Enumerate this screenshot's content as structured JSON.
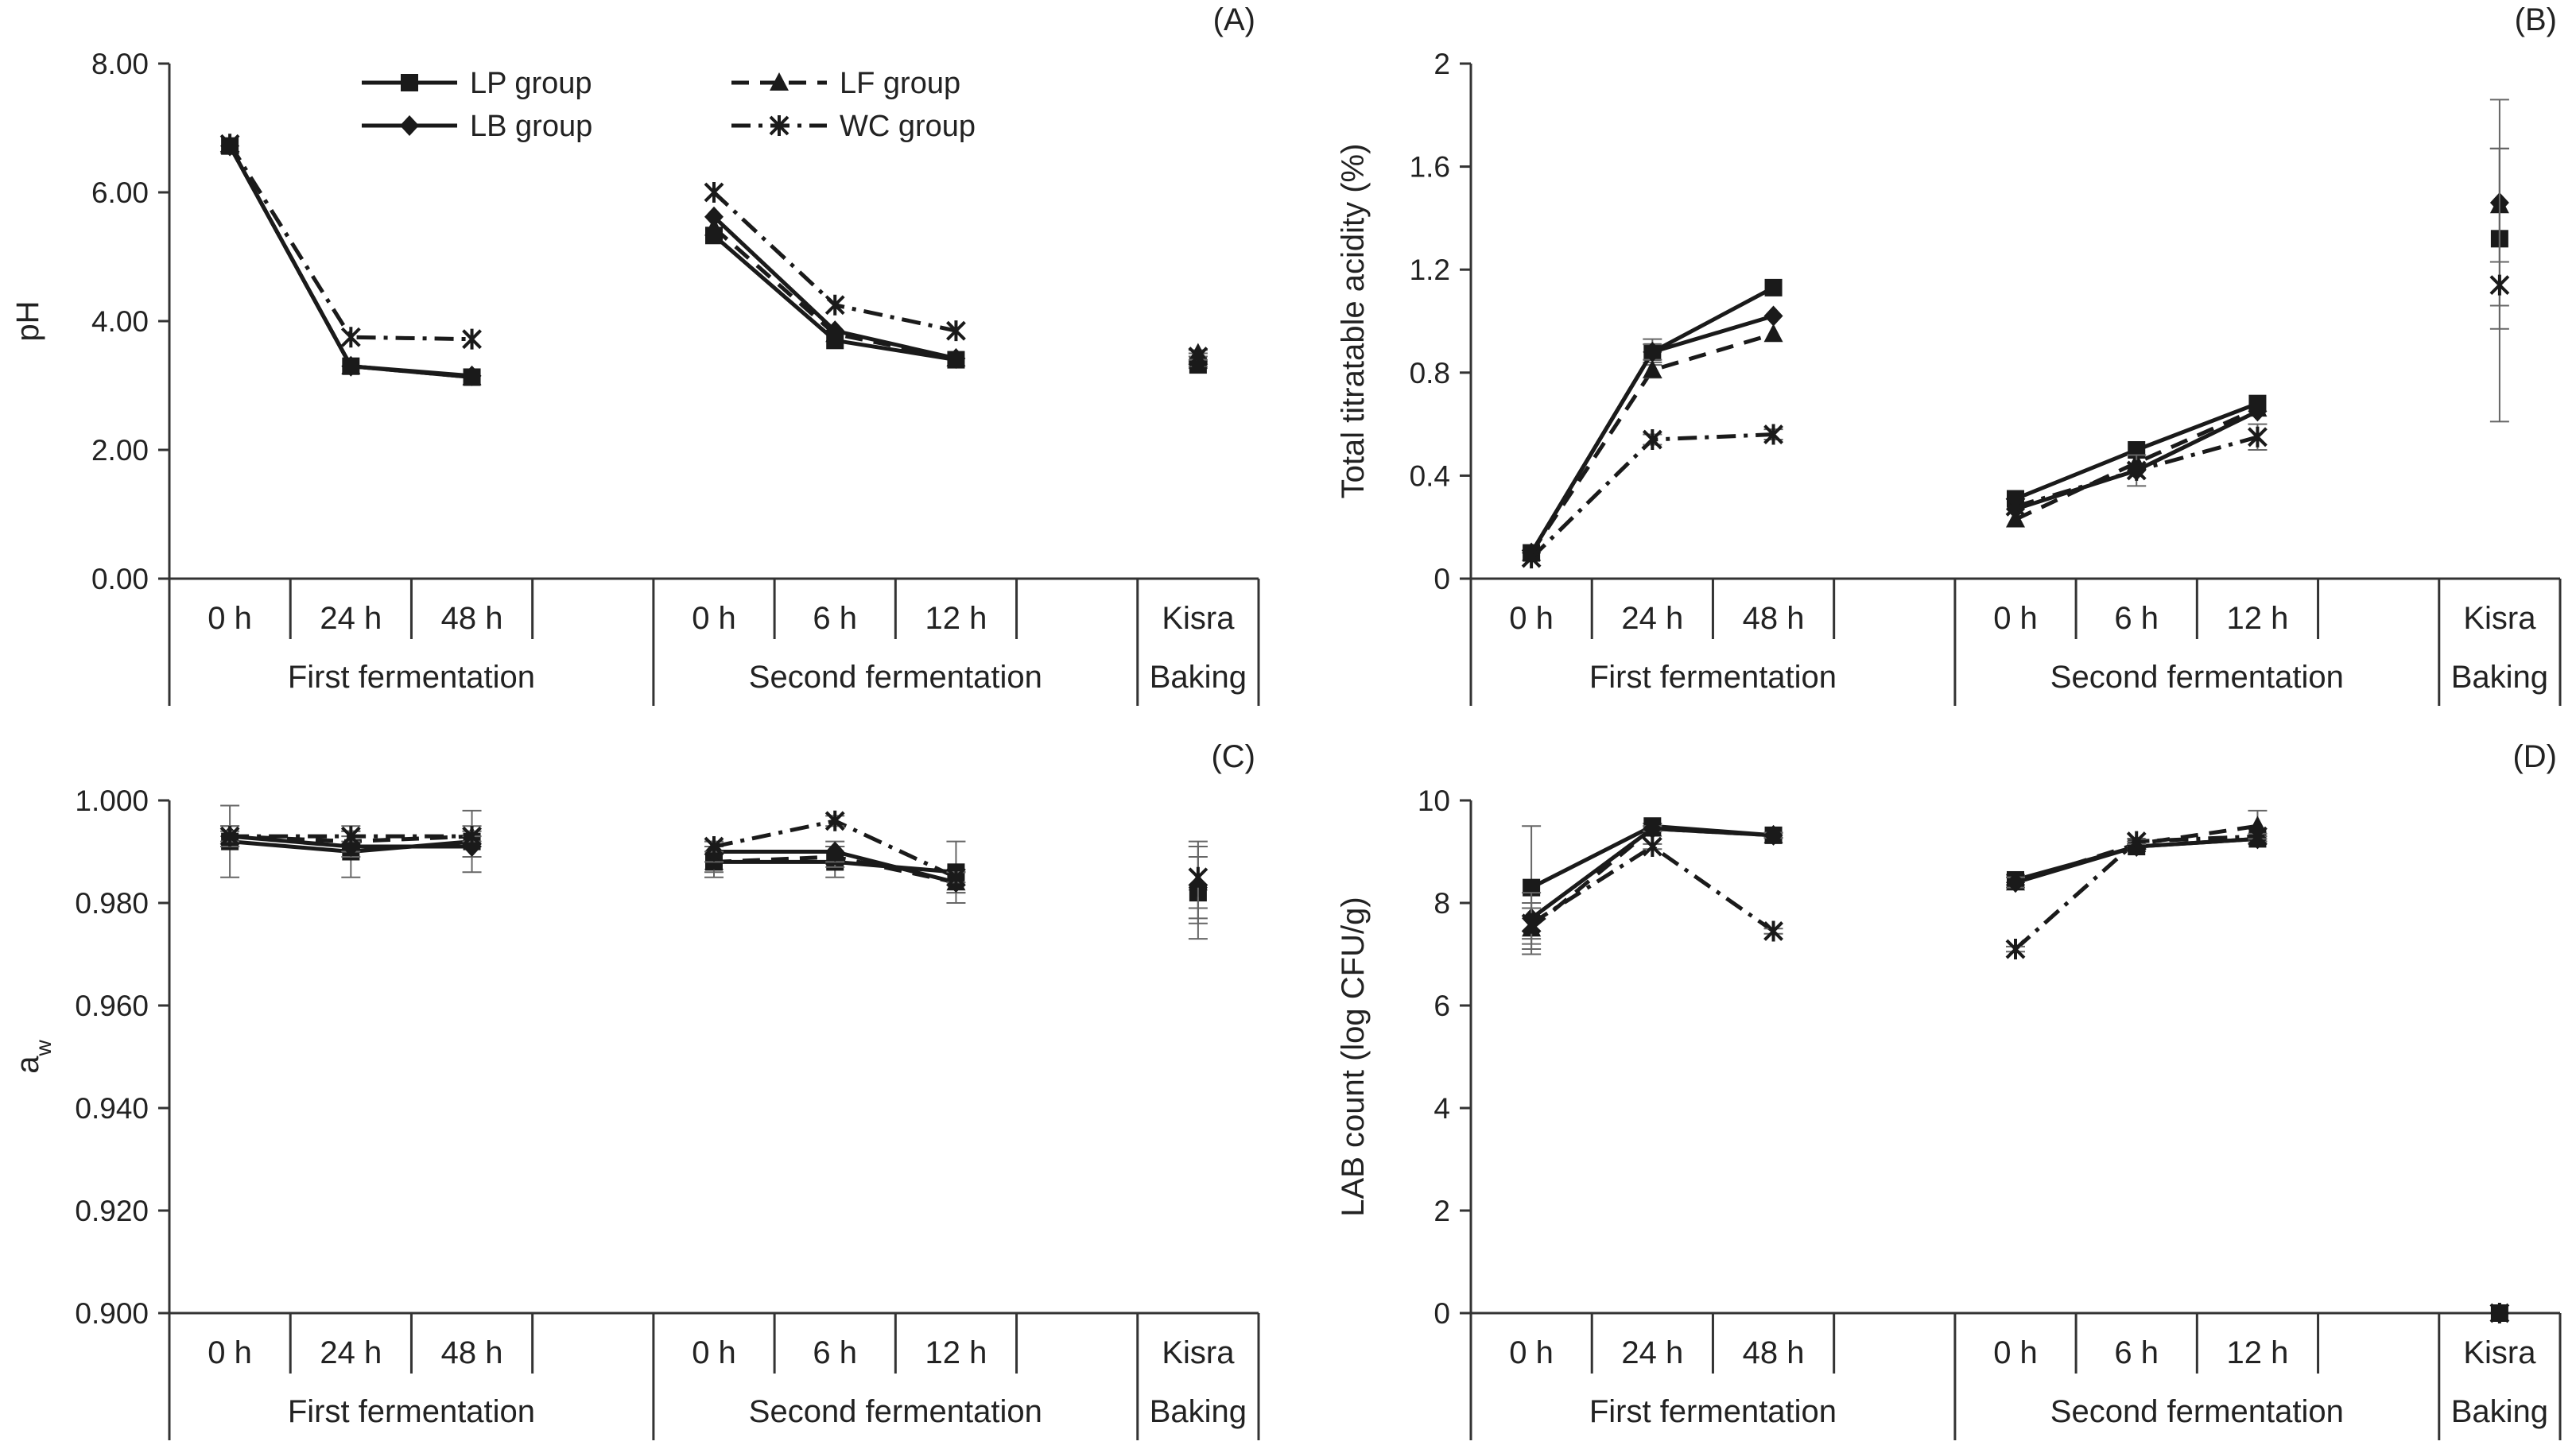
{
  "legend": {
    "items": [
      {
        "key": "LP",
        "label": "LP group",
        "dash": "",
        "marker": "square"
      },
      {
        "key": "LF",
        "label": "LF group",
        "dash": "22 14",
        "marker": "triangle"
      },
      {
        "key": "LB",
        "label": "LB group",
        "dash": "",
        "marker": "diamond"
      },
      {
        "key": "WC",
        "label": "WC group",
        "dash": "",
        "marker": "star"
      }
    ]
  },
  "x_axis": {
    "tick_labels": [
      "0 h",
      "24 h",
      "48 h",
      "0 h",
      "6 h",
      "12 h",
      "Kisra"
    ],
    "group_labels": [
      "First fermentation",
      "Second fermentation",
      "Baking"
    ]
  },
  "chart_data": [
    {
      "type": "line",
      "panel_label": "(A)",
      "ylabel": "pH",
      "ylim": [
        0,
        8
      ],
      "yticks": [
        "0.00",
        "2.00",
        "4.00",
        "6.00",
        "8.00"
      ],
      "ytick_values": [
        0,
        2,
        4,
        6,
        8
      ],
      "series": [
        {
          "name": "LP group",
          "segments": [
            [
              6.72,
              3.3,
              3.13
            ],
            [
              5.33,
              3.7,
              3.4
            ],
            [
              3.32
            ]
          ],
          "errors": [
            [
              0,
              0,
              0
            ],
            [
              0,
              0,
              0
            ],
            [
              0.05
            ]
          ]
        },
        {
          "name": "LF group",
          "segments": [
            [
              6.72,
              3.3,
              3.13
            ],
            [
              5.45,
              3.8,
              3.42
            ],
            [
              3.5
            ]
          ],
          "errors": [
            [
              0,
              0,
              0
            ],
            [
              0,
              0,
              0
            ],
            [
              0.05
            ]
          ]
        },
        {
          "name": "LB group",
          "segments": [
            [
              6.72,
              3.3,
              3.15
            ],
            [
              5.62,
              3.85,
              3.42
            ],
            [
              3.35
            ]
          ],
          "errors": [
            [
              0,
              0,
              0
            ],
            [
              0,
              0,
              0
            ],
            [
              0.05
            ]
          ]
        },
        {
          "name": "WC group",
          "segments": [
            [
              6.75,
              3.75,
              3.72
            ],
            [
              6.0,
              4.25,
              3.85
            ],
            [
              3.45
            ]
          ],
          "errors": [
            [
              0,
              0,
              0
            ],
            [
              0,
              0,
              0
            ],
            [
              0.05
            ]
          ]
        }
      ]
    },
    {
      "type": "line",
      "panel_label": "(B)",
      "ylabel": "Total titratable acidity (%)",
      "ylim": [
        0,
        2
      ],
      "yticks": [
        "0",
        "0.4",
        "0.8",
        "1.2",
        "1.6",
        "2"
      ],
      "ytick_values": [
        0,
        0.4,
        0.8,
        1.2,
        1.6,
        2
      ],
      "series": [
        {
          "name": "LP group",
          "segments": [
            [
              0.1,
              0.88,
              1.13
            ],
            [
              0.31,
              0.5,
              0.68
            ],
            [
              1.32
            ]
          ],
          "errors": [
            [
              0,
              0.05,
              0
            ],
            [
              0,
              0,
              0
            ],
            [
              0.35
            ]
          ]
        },
        {
          "name": "LF group",
          "segments": [
            [
              0.1,
              0.81,
              0.95
            ],
            [
              0.23,
              0.45,
              0.66
            ],
            [
              1.45
            ]
          ],
          "errors": [
            [
              0,
              0.03,
              0
            ],
            [
              0,
              0,
              0
            ],
            [
              0.22
            ]
          ]
        },
        {
          "name": "LB group",
          "segments": [
            [
              0.1,
              0.88,
              1.02
            ],
            [
              0.27,
              0.42,
              0.65
            ],
            [
              1.46
            ]
          ],
          "errors": [
            [
              0,
              0.03,
              0
            ],
            [
              0,
              0,
              0
            ],
            [
              0.4
            ]
          ]
        },
        {
          "name": "WC group",
          "segments": [
            [
              0.08,
              0.54,
              0.56
            ],
            [
              0.28,
              0.42,
              0.55
            ],
            [
              1.14
            ]
          ],
          "errors": [
            [
              0,
              0.02,
              0.02
            ],
            [
              0,
              0.06,
              0.05
            ],
            [
              0.53
            ]
          ]
        }
      ]
    },
    {
      "type": "line",
      "panel_label": "(C)",
      "ylabel": "aw",
      "ylim": [
        0.9,
        1.0
      ],
      "yticks": [
        "0.900",
        "0.920",
        "0.940",
        "0.960",
        "0.980",
        "1.000"
      ],
      "ytick_values": [
        0.9,
        0.92,
        0.94,
        0.96,
        0.98,
        1.0
      ],
      "series": [
        {
          "name": "LP group",
          "segments": [
            [
              0.992,
              0.99,
              0.992
            ],
            [
              0.988,
              0.988,
              0.986
            ],
            [
              0.982
            ]
          ],
          "errors": [
            [
              0.007,
              0.005,
              0.006
            ],
            [
              0.003,
              0.003,
              0.006
            ],
            [
              0.009
            ]
          ]
        },
        {
          "name": "LF group",
          "segments": [
            [
              0.993,
              0.992,
              0.993
            ],
            [
              0.988,
              0.989,
              0.984
            ],
            [
              0.984
            ]
          ],
          "errors": [
            [
              0.002,
              0.002,
              0.002
            ],
            [
              0.002,
              0.002,
              0.002
            ],
            [
              0.008
            ]
          ]
        },
        {
          "name": "LB group",
          "segments": [
            [
              0.993,
              0.991,
              0.991
            ],
            [
              0.99,
              0.99,
              0.984
            ],
            [
              0.983
            ]
          ],
          "errors": [
            [
              0.002,
              0.002,
              0.002
            ],
            [
              0.002,
              0.002,
              0.002
            ],
            [
              0.006
            ]
          ]
        },
        {
          "name": "WC group",
          "segments": [
            [
              0.993,
              0.993,
              0.993
            ],
            [
              0.991,
              0.996,
              0.985
            ],
            [
              0.985
            ]
          ],
          "errors": [
            [
              0.001,
              0.001,
              0.001
            ],
            [
              0.001,
              0.001,
              0.001
            ],
            [
              0.006
            ]
          ]
        }
      ]
    },
    {
      "type": "line",
      "panel_label": "(D)",
      "ylabel": "LAB count  (log CFU/g)",
      "ylim": [
        0,
        10
      ],
      "yticks": [
        "0",
        "2",
        "4",
        "6",
        "8",
        "10"
      ],
      "ytick_values": [
        0,
        2,
        4,
        6,
        8,
        10
      ],
      "series": [
        {
          "name": "LP group",
          "segments": [
            [
              8.3,
              9.5,
              9.32
            ],
            [
              8.45,
              9.1,
              9.25
            ],
            [
              0
            ]
          ],
          "errors": [
            [
              1.2,
              0.05,
              0.05
            ],
            [
              0.1,
              0.05,
              0.05
            ],
            [
              0
            ]
          ]
        },
        {
          "name": "LF group",
          "segments": [
            [
              7.5,
              9.45,
              9.32
            ],
            [
              8.4,
              9.15,
              9.5
            ],
            [
              0
            ]
          ],
          "errors": [
            [
              0.5,
              0.05,
              0.05
            ],
            [
              0.1,
              0.05,
              0.3
            ],
            [
              0
            ]
          ]
        },
        {
          "name": "LB group",
          "segments": [
            [
              7.7,
              9.45,
              9.32
            ],
            [
              8.4,
              9.1,
              9.25
            ],
            [
              0
            ]
          ],
          "errors": [
            [
              0.5,
              0.05,
              0.05
            ],
            [
              0.1,
              0.05,
              0.05
            ],
            [
              0
            ]
          ]
        },
        {
          "name": "WC group",
          "segments": [
            [
              7.6,
              9.1,
              7.45
            ],
            [
              7.1,
              9.2,
              9.3
            ],
            [
              0
            ]
          ],
          "errors": [
            [
              0.3,
              0.05,
              0.05
            ],
            [
              0.05,
              0.05,
              0.05
            ],
            [
              0
            ]
          ]
        }
      ]
    }
  ]
}
